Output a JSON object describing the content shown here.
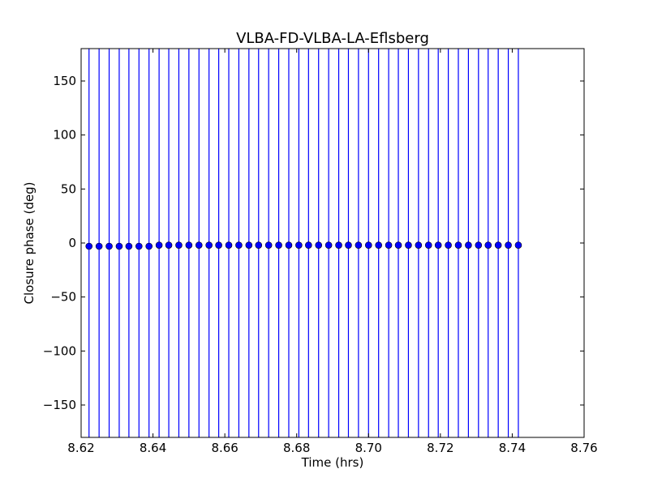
{
  "chart_data": {
    "type": "scatter",
    "title": "VLBA-FD-VLBA-LA-Eflsberg",
    "xlabel": "Time (hrs)",
    "ylabel": "Closure phase (deg)",
    "xlim": [
      8.62,
      8.76
    ],
    "ylim": [
      -180,
      180
    ],
    "xticks": [
      8.62,
      8.64,
      8.66,
      8.68,
      8.7,
      8.72,
      8.74,
      8.76
    ],
    "xtick_labels": [
      "8.62",
      "8.64",
      "8.66",
      "8.68",
      "8.70",
      "8.72",
      "8.74",
      "8.76"
    ],
    "yticks": [
      -150,
      -100,
      -50,
      0,
      50,
      100,
      150
    ],
    "ytick_labels": [
      "−150",
      "−100",
      "−50",
      "0",
      "50",
      "100",
      "150"
    ],
    "grid": false,
    "legend": "none",
    "series": [
      {
        "color": "#0000ff",
        "marker": "circle",
        "error_bars": "vertical, extending beyond both axis limits",
        "x": [
          8.6222,
          8.625,
          8.6278,
          8.6306,
          8.6333,
          8.6361,
          8.6389,
          8.6417,
          8.6444,
          8.6472,
          8.65,
          8.6528,
          8.6556,
          8.6583,
          8.6611,
          8.6639,
          8.6667,
          8.6694,
          8.6722,
          8.675,
          8.6778,
          8.6806,
          8.6833,
          8.6861,
          8.6889,
          8.6917,
          8.6944,
          8.6972,
          8.7,
          8.7028,
          8.7056,
          8.7083,
          8.7111,
          8.7139,
          8.7167,
          8.7194,
          8.7222,
          8.725,
          8.7278,
          8.7306,
          8.7333,
          8.7361,
          8.7389,
          8.7417
        ],
        "y": [
          -3,
          -3,
          -3,
          -3,
          -3,
          -3,
          -3,
          -2,
          -2,
          -2,
          -2,
          -2,
          -2,
          -2,
          -2,
          -2,
          -2,
          -2,
          -2,
          -2,
          -2,
          -2,
          -2,
          -2,
          -2,
          -2,
          -2,
          -2,
          -2,
          -2,
          -2,
          -2,
          -2,
          -2,
          -2,
          -2,
          -2,
          -2,
          -2,
          -2,
          -2,
          -2,
          -2,
          -2
        ]
      }
    ]
  }
}
